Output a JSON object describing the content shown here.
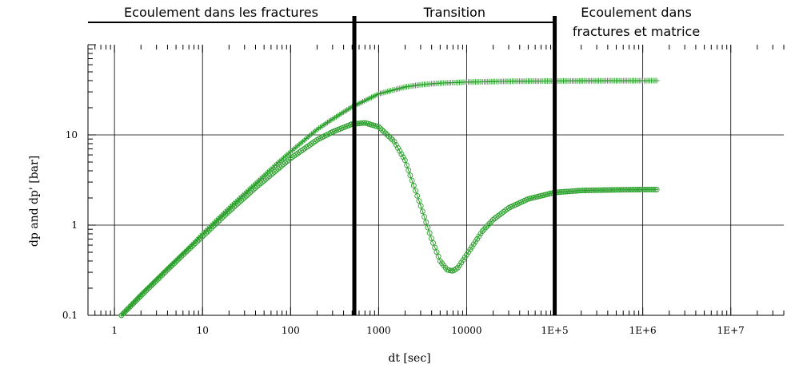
{
  "chart_data": {
    "type": "scatter",
    "xlabel": "dt [sec]",
    "ylabel": "dp and dp'  [bar]",
    "x_scale": "log",
    "y_scale": "log",
    "xlim": [
      0.5,
      40000000
    ],
    "ylim": [
      0.1,
      100
    ],
    "grid": true,
    "x_ticks": [
      1,
      10,
      100,
      1000,
      10000,
      100000,
      1000000,
      10000000
    ],
    "x_tick_labels": [
      "1",
      "10",
      "100",
      "1000",
      "10000",
      "1E+5",
      "1E+6",
      "1E+7"
    ],
    "y_ticks": [
      0.1,
      1,
      10
    ],
    "y_tick_labels": [
      "0.1",
      "1",
      "10"
    ],
    "regions": [
      {
        "label": "Ecoulement dans les fractures",
        "label_lines": [
          "Ecoulement dans les fractures"
        ],
        "x_start": 0.5,
        "x_end": 530
      },
      {
        "label": "Transition",
        "label_lines": [
          "Transition"
        ],
        "x_start": 530,
        "x_end": 100000
      },
      {
        "label": "Ecoulement dans fractures et matrice",
        "label_lines": [
          "Ecoulement dans",
          "fractures et matrice"
        ],
        "x_start": 100000,
        "x_end": 40000000
      }
    ],
    "boundaries": [
      530,
      100000
    ],
    "series": [
      {
        "marker": "plus",
        "color": "#2ca02c",
        "x": [
          1.2,
          2,
          4,
          7,
          10,
          20,
          40,
          70,
          100,
          200,
          300,
          500,
          700,
          1000,
          2000,
          3000,
          5000,
          10000,
          30000,
          100000,
          300000,
          1000000,
          1500000
        ],
        "y": [
          0.1,
          0.17,
          0.33,
          0.56,
          0.8,
          1.55,
          2.9,
          4.8,
          6.5,
          11.5,
          15,
          20.5,
          24,
          28.5,
          34,
          36,
          37.5,
          38.5,
          39.3,
          39.6,
          39.8,
          39.9,
          40
        ]
      },
      {
        "marker": "circle",
        "color": "#2ca02c",
        "x": [
          1.2,
          2,
          4,
          7,
          10,
          20,
          40,
          70,
          100,
          200,
          300,
          500,
          700,
          1000,
          1500,
          2000,
          3000,
          4000,
          5000,
          6000,
          7000,
          8000,
          10000,
          15000,
          20000,
          30000,
          50000,
          100000,
          200000,
          500000,
          1000000,
          1500000
        ],
        "y": [
          0.1,
          0.165,
          0.32,
          0.54,
          0.75,
          1.42,
          2.6,
          4.1,
          5.5,
          8.8,
          10.8,
          13.2,
          13.6,
          12.3,
          8.5,
          5.2,
          1.65,
          0.7,
          0.4,
          0.32,
          0.31,
          0.34,
          0.47,
          0.85,
          1.15,
          1.55,
          1.95,
          2.3,
          2.42,
          2.46,
          2.48,
          2.48
        ]
      }
    ]
  }
}
